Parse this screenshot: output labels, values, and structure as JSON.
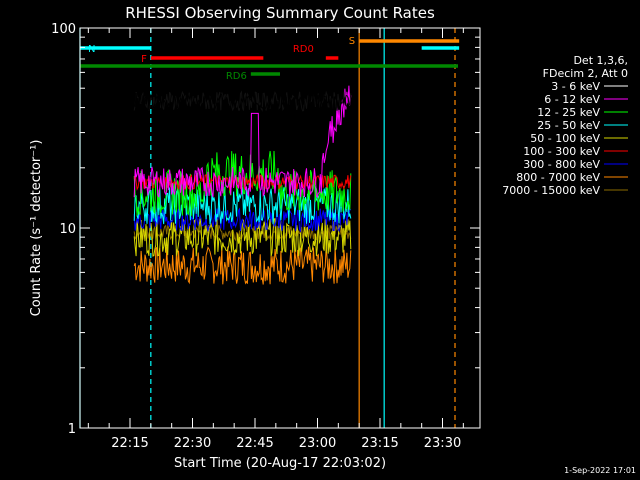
{
  "chart_data": {
    "type": "line",
    "title": "RHESSI Observing Summary Count Rates",
    "xlabel": "Start Time (20-Aug-17 22:03:02)",
    "ylabel": "Count Rate (s⁻¹ detector⁻¹)",
    "yscale": "log",
    "ylim": [
      1,
      100
    ],
    "xlim_minutes": [
      0,
      96
    ],
    "y_ticks": [
      "1",
      "10",
      "100"
    ],
    "x_ticks": [
      {
        "label": "22:15",
        "t": 12
      },
      {
        "label": "22:30",
        "t": 27
      },
      {
        "label": "22:45",
        "t": 42
      },
      {
        "label": "23:00",
        "t": 57
      },
      {
        "label": "23:15",
        "t": 72
      },
      {
        "label": "23:30",
        "t": 87
      }
    ],
    "legend_header": [
      "Det 1,3,6,",
      "FDecim 2, Att 0"
    ],
    "data_window_minutes": [
      13,
      65
    ],
    "series": [
      {
        "name": "3 - 6 keV",
        "color": "#000000",
        "level": 43,
        "noise": 0.05
      },
      {
        "name": "6 - 12 keV",
        "color": "#ff00ff",
        "level": 17,
        "noise": 0.08
      },
      {
        "name": "12 - 25 keV",
        "color": "#00ff00",
        "level": 15,
        "noise": 0.12
      },
      {
        "name": "25 - 50 keV",
        "color": "#00ffff",
        "level": 13,
        "noise": 0.1
      },
      {
        "name": "50 - 100 keV",
        "color": "#d6d600",
        "level": 9,
        "noise": 0.1
      },
      {
        "name": "100 - 300 keV",
        "color": "#ff0000",
        "level": 17,
        "noise": 0.04
      },
      {
        "name": "300 - 800 keV",
        "color": "#0000ff",
        "level": 11,
        "noise": 0.06
      },
      {
        "name": "800 - 7000 keV",
        "color": "#ff8800",
        "level": 6.5,
        "noise": 0.1
      },
      {
        "name": "7000 - 15000 keV",
        "color": "#8b6b00",
        "level": 9.5,
        "noise": 0.04
      }
    ],
    "flags": [
      {
        "label": "N",
        "color": "#00ffff",
        "start": 0,
        "end": 17
      },
      {
        "label": "F",
        "color": "#ff0000",
        "start": 17,
        "end": 44
      },
      {
        "label": "RD0",
        "color": "#ff0000",
        "start": 59,
        "end": 62
      },
      {
        "label": "RD6",
        "color": "#008800",
        "start": 41,
        "end": 48
      },
      {
        "label": "S",
        "color": "#ff8800",
        "start": 67,
        "end": 91
      },
      {
        "label": "",
        "color": "#00ffff",
        "start": 82,
        "end": 91
      }
    ],
    "verticals": [
      {
        "color": "#00ffff",
        "t": 0,
        "dashed": false
      },
      {
        "color": "#00ffff",
        "t": 17,
        "dashed": true
      },
      {
        "color": "#ff8800",
        "t": 67,
        "dashed": false
      },
      {
        "color": "#00ffff",
        "t": 73,
        "dashed": false
      },
      {
        "color": "#ff8800",
        "t": 90,
        "dashed": true
      }
    ],
    "grid": false,
    "legend_placement": "right"
  },
  "footer_date": "1-Sep-2022 17:01"
}
